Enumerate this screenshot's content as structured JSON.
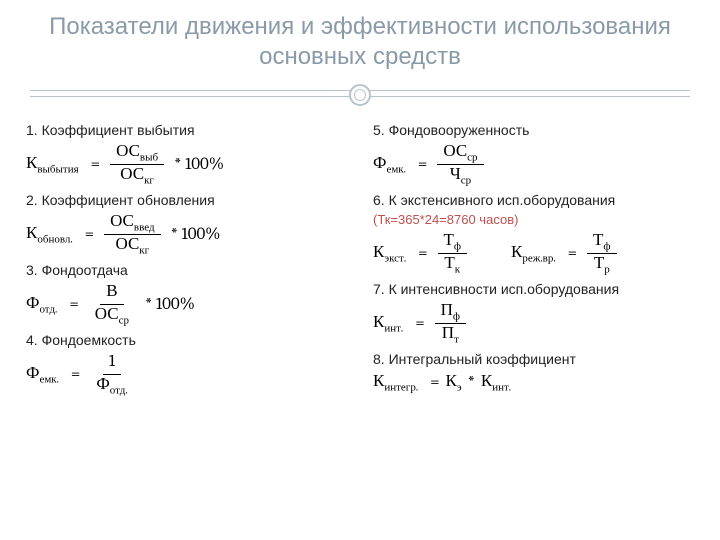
{
  "title": "Показатели движения и эффективности использования основных средств",
  "colors": {
    "title": "#8a9aa8",
    "divider": "#b8c4cc",
    "text": "#222222",
    "formula": "#000000",
    "note": "#c0504d",
    "background": "#ffffff"
  },
  "typography": {
    "title_fontsize": 24,
    "item_fontsize": 14,
    "formula_fontsize": 17,
    "note_fontsize": 13,
    "formula_font": "Cambria / Times New Roman (serif)"
  },
  "left": [
    {
      "title": "1. Коэффициент выбытия",
      "lhs": "К",
      "lhs_sub": "выбытия",
      "num": "ОС",
      "num_sub": "выб",
      "den": "ОС",
      "den_sub": "кг",
      "tail": "* 100%"
    },
    {
      "title": "2. Коэффициент обновления",
      "lhs": "К",
      "lhs_sub": "обновл.",
      "num": "ОС",
      "num_sub": "введ",
      "den": "ОС",
      "den_sub": "кг",
      "tail": "* 100%"
    },
    {
      "title": "3. Фондоотдача",
      "lhs": "Ф",
      "lhs_sub": "отд.",
      "num": "В",
      "num_sub": "",
      "den": "ОС",
      "den_sub": "ср",
      "tail": "* 100%"
    },
    {
      "title": "4. Фондоемкость",
      "lhs": "Ф",
      "lhs_sub": "емк.",
      "num": "1",
      "num_sub": "",
      "den": "Ф",
      "den_sub": "отд.",
      "tail": ""
    }
  ],
  "right": [
    {
      "title": "5. Фондовооруженность",
      "lhs": "Ф",
      "lhs_sub": "емк.",
      "num": "ОС",
      "num_sub": "ср",
      "den": "Ч",
      "den_sub": "ср",
      "tail": ""
    },
    {
      "title": "6. К экстенсивного исп.оборудования",
      "note": "(Тк=365*24=8760 часов)",
      "pair": [
        {
          "lhs": "К",
          "lhs_sub": "экст.",
          "num": "Т",
          "num_sub": "ф",
          "den": "Т",
          "den_sub": "к"
        },
        {
          "lhs": "К",
          "lhs_sub": "реж.вр.",
          "num": "Т",
          "num_sub": "ф",
          "den": "Т",
          "den_sub": "р"
        }
      ]
    },
    {
      "title": "7. К интенсивности исп.оборудования",
      "lhs": "К",
      "lhs_sub": "инт.",
      "num": "П",
      "num_sub": "ф",
      "den": "П",
      "den_sub": "т",
      "tail": ""
    },
    {
      "title": "8. Интегральный коэффициент",
      "inline": {
        "lhs": "К",
        "lhs_sub": "интегр.",
        "rhs_a": "К",
        "rhs_a_sub": "э",
        "op": "*",
        "rhs_b": "К",
        "rhs_b_sub": "инт."
      }
    }
  ]
}
